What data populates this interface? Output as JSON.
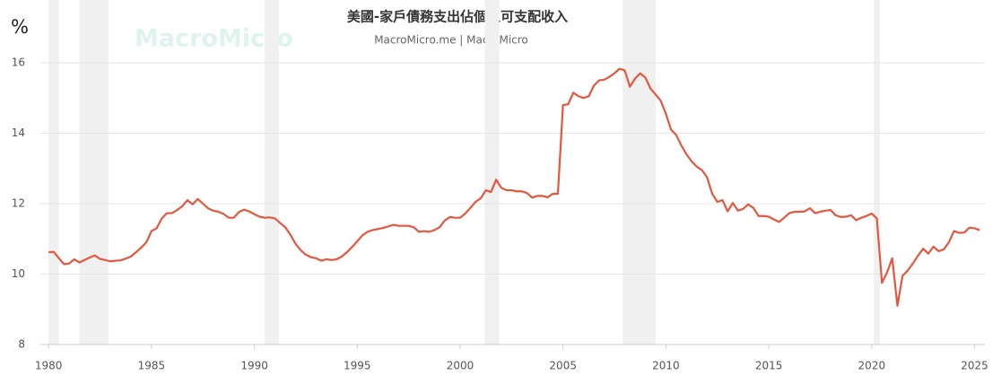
{
  "chart_data": {
    "type": "line",
    "title": "美國-家戶債務支出佔個人可支配收入",
    "subtitle": "MacroMicro.me | MacroMicro",
    "watermark": "MacroMicro",
    "y_unit": "%",
    "x": [
      1980,
      1980.25,
      1980.5,
      1980.75,
      1981,
      1981.25,
      1981.5,
      1981.75,
      1982,
      1982.25,
      1982.5,
      1982.75,
      1983,
      1983.25,
      1983.5,
      1983.75,
      1984,
      1984.25,
      1984.5,
      1984.75,
      1985,
      1985.25,
      1985.5,
      1985.75,
      1986,
      1986.25,
      1986.5,
      1986.75,
      1987,
      1987.25,
      1987.5,
      1987.75,
      1988,
      1988.25,
      1988.5,
      1988.75,
      1989,
      1989.25,
      1989.5,
      1989.75,
      1990,
      1990.25,
      1990.5,
      1990.75,
      1991,
      1991.25,
      1991.5,
      1991.75,
      1992,
      1992.25,
      1992.5,
      1992.75,
      1993,
      1993.25,
      1993.5,
      1993.75,
      1994,
      1994.25,
      1994.5,
      1994.75,
      1995,
      1995.25,
      1995.5,
      1995.75,
      1996,
      1996.25,
      1996.5,
      1996.75,
      1997,
      1997.25,
      1997.5,
      1997.75,
      1998,
      1998.25,
      1998.5,
      1998.75,
      1999,
      1999.25,
      1999.5,
      1999.75,
      2000,
      2000.25,
      2000.5,
      2000.75,
      2001,
      2001.25,
      2001.5,
      2001.75,
      2002,
      2002.25,
      2002.5,
      2002.75,
      2003,
      2003.25,
      2003.5,
      2003.75,
      2004,
      2004.25,
      2004.5,
      2004.75,
      2005,
      2005.25,
      2005.5,
      2005.75,
      2006,
      2006.25,
      2006.5,
      2006.75,
      2007,
      2007.25,
      2007.5,
      2007.75,
      2008,
      2008.25,
      2008.5,
      2008.75,
      2009,
      2009.25,
      2009.5,
      2009.75,
      2010,
      2010.25,
      2010.5,
      2010.75,
      2011,
      2011.25,
      2011.5,
      2011.75,
      2012,
      2012.25,
      2012.5,
      2012.75,
      2013,
      2013.25,
      2013.5,
      2013.75,
      2014,
      2014.25,
      2014.5,
      2014.75,
      2015,
      2015.25,
      2015.5,
      2015.75,
      2016,
      2016.25,
      2016.5,
      2016.75,
      2017,
      2017.25,
      2017.5,
      2017.75,
      2018,
      2018.25,
      2018.5,
      2018.75,
      2019,
      2019.25,
      2019.5,
      2019.75,
      2020,
      2020.25,
      2020.5,
      2020.75,
      2021,
      2021.25,
      2021.5,
      2021.75,
      2022,
      2022.25,
      2022.5,
      2022.75,
      2023,
      2023.25,
      2023.5,
      2023.75,
      2024,
      2024.25,
      2024.5,
      2024.75,
      2025,
      2025.25
    ],
    "series": [
      {
        "name": "美國-家戶債務支出佔個人可支配收入",
        "color": "#e4573f",
        "values": [
          10.62,
          10.63,
          10.45,
          10.28,
          10.3,
          10.42,
          10.33,
          10.4,
          10.47,
          10.53,
          10.43,
          10.4,
          10.36,
          10.38,
          10.39,
          10.44,
          10.5,
          10.62,
          10.75,
          10.9,
          11.22,
          11.3,
          11.58,
          11.73,
          11.73,
          11.82,
          11.93,
          12.1,
          11.98,
          12.13,
          12.0,
          11.87,
          11.8,
          11.77,
          11.71,
          11.6,
          11.6,
          11.76,
          11.83,
          11.78,
          11.7,
          11.63,
          11.6,
          11.61,
          11.58,
          11.45,
          11.33,
          11.12,
          10.86,
          10.68,
          10.55,
          10.48,
          10.45,
          10.38,
          10.42,
          10.4,
          10.42,
          10.5,
          10.62,
          10.77,
          10.93,
          11.1,
          11.2,
          11.25,
          11.28,
          11.31,
          11.35,
          11.4,
          11.37,
          11.37,
          11.37,
          11.33,
          11.2,
          11.22,
          11.2,
          11.25,
          11.33,
          11.52,
          11.62,
          11.6,
          11.6,
          11.72,
          11.88,
          12.05,
          12.15,
          12.38,
          12.33,
          12.68,
          12.45,
          12.38,
          12.38,
          12.35,
          12.35,
          12.3,
          12.17,
          12.22,
          12.22,
          12.18,
          12.28,
          12.28,
          14.8,
          14.82,
          15.15,
          15.05,
          15.0,
          15.05,
          15.35,
          15.5,
          15.52,
          15.6,
          15.7,
          15.83,
          15.78,
          15.32,
          15.55,
          15.7,
          15.58,
          15.27,
          15.1,
          14.92,
          14.55,
          14.1,
          13.95,
          13.65,
          13.4,
          13.2,
          13.05,
          12.95,
          12.75,
          12.28,
          12.05,
          12.1,
          11.78,
          12.02,
          11.8,
          11.85,
          11.98,
          11.88,
          11.65,
          11.65,
          11.63,
          11.55,
          11.48,
          11.6,
          11.73,
          11.77,
          11.77,
          11.78,
          11.87,
          11.73,
          11.77,
          11.8,
          11.82,
          11.67,
          11.62,
          11.63,
          11.67,
          11.53,
          11.6,
          11.65,
          11.72,
          11.58,
          9.75,
          10.05,
          10.45,
          9.1,
          9.95,
          10.1,
          10.3,
          10.52,
          10.72,
          10.58,
          10.78,
          10.65,
          10.7,
          10.9,
          11.22,
          11.17,
          11.18,
          11.32,
          11.3,
          11.25
        ]
      }
    ],
    "recessions": [
      [
        1980.0,
        1980.5
      ],
      [
        1981.5,
        1982.9
      ],
      [
        1990.5,
        1991.2
      ],
      [
        2001.2,
        2001.9
      ],
      [
        2007.9,
        2009.5
      ],
      [
        2020.1,
        2020.4
      ]
    ],
    "xlim": [
      1979.6,
      2025.5
    ],
    "xticks": [
      1980,
      1985,
      1990,
      1995,
      2000,
      2005,
      2010,
      2015,
      2020,
      2025
    ],
    "ylim": [
      8,
      16.33
    ],
    "yticks": [
      8,
      10,
      12,
      14,
      16
    ],
    "grid": true
  }
}
